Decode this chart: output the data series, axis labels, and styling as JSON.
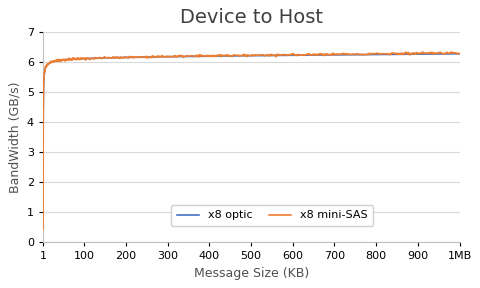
{
  "title": "Device to Host",
  "xlabel": "Message Size (KB)",
  "ylabel": "BandWidth (GB/s)",
  "ylim": [
    0,
    7
  ],
  "yticks": [
    0,
    1,
    2,
    3,
    4,
    5,
    6,
    7
  ],
  "xtick_labels": [
    "1",
    "100",
    "200",
    "300",
    "400",
    "500",
    "600",
    "700",
    "800",
    "900",
    "1MB"
  ],
  "xtick_positions": [
    1,
    100,
    200,
    300,
    400,
    500,
    600,
    700,
    800,
    900,
    1000
  ],
  "x_start": 1,
  "x_end": 1000,
  "optic_color": "#4472c4",
  "minisas_color": "#ed7d31",
  "legend_labels": [
    "x8 optic",
    "x8 mini-SAS"
  ],
  "background_color": "#ffffff",
  "grid_color": "#d9d9d9",
  "title_fontsize": 14,
  "axis_fontsize": 9,
  "tick_fontsize": 8,
  "line_width": 1.2,
  "saturation_bw": 6.35,
  "start_bw": 0.42,
  "k": 0.055
}
